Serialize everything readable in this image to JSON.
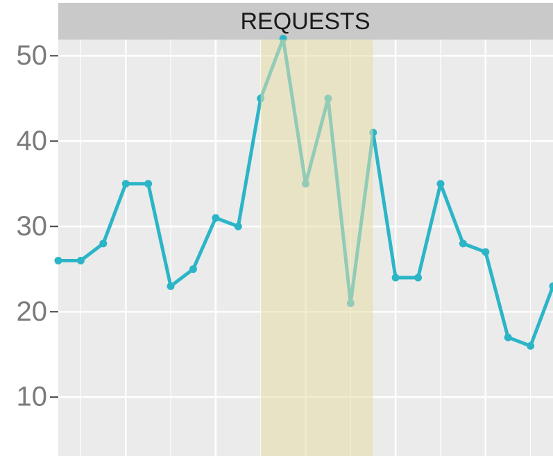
{
  "chart_data": {
    "type": "line",
    "title": "REQUESTS",
    "categories": [
      null,
      null,
      null,
      null,
      null,
      null,
      null,
      null,
      null,
      null,
      null,
      null,
      null,
      null,
      null,
      null,
      null,
      null,
      null,
      null,
      null,
      null,
      null
    ],
    "series": [
      {
        "name": "REQUESTS",
        "color": "#2bb5c7",
        "values": [
          26,
          26,
          28,
          35,
          35,
          23,
          25,
          31,
          30,
          45,
          52,
          35,
          45,
          21,
          41,
          24,
          24,
          35,
          28,
          27,
          17,
          16,
          23
        ]
      }
    ],
    "ylim": [
      3.1,
      51.9
    ],
    "yticks": [
      10,
      20,
      30,
      40,
      50
    ],
    "grid": true,
    "shaded_span": {
      "from": 9,
      "to": 14,
      "color": "#e8dca8"
    }
  }
}
